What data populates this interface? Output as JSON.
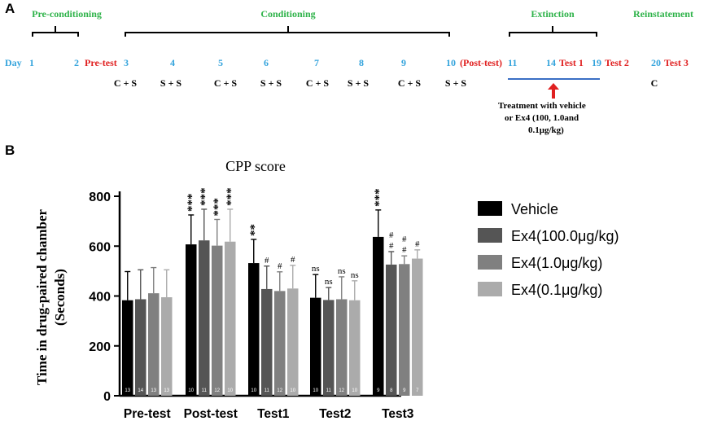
{
  "panel_a": {
    "label": "A",
    "phases": [
      {
        "name": "Pre-conditioning",
        "color": "#2fb34a"
      },
      {
        "name": "Conditioning",
        "color": "#2fb34a"
      },
      {
        "name": "Extinction",
        "color": "#2fb34a"
      },
      {
        "name": "Reinstatement",
        "color": "#2fb34a"
      }
    ],
    "timeline": {
      "day_label": "Day",
      "days": [
        {
          "text": "1",
          "color": "#33a3dc"
        },
        {
          "text": "2",
          "color": "#33a3dc"
        },
        {
          "text": "Pre-test",
          "color": "#e02020"
        },
        {
          "text": "3",
          "color": "#33a3dc"
        },
        {
          "text": "4",
          "color": "#33a3dc"
        },
        {
          "text": "5",
          "color": "#33a3dc"
        },
        {
          "text": "6",
          "color": "#33a3dc"
        },
        {
          "text": "7",
          "color": "#33a3dc"
        },
        {
          "text": "8",
          "color": "#33a3dc"
        },
        {
          "text": "9",
          "color": "#33a3dc"
        },
        {
          "text": "10",
          "color": "#33a3dc"
        },
        {
          "text": "(Post-test)",
          "color": "#e02020"
        },
        {
          "text": "11",
          "color": "#33a3dc"
        },
        {
          "text": "14",
          "color": "#33a3dc"
        },
        {
          "text": "Test 1",
          "color": "#e02020"
        },
        {
          "text": "19",
          "color": "#33a3dc"
        },
        {
          "text": "Test 2",
          "color": "#e02020"
        },
        {
          "text": "20",
          "color": "#33a3dc"
        },
        {
          "text": "Test 3",
          "color": "#e02020"
        }
      ],
      "sessions": [
        "C + S",
        "S + S",
        "C + S",
        "S + S",
        "C + S",
        "S + S",
        "C + S",
        "S + S",
        "C"
      ],
      "treatment": [
        "Treatment with vehicle",
        "or Ex4    (100, 1.0and",
        "0.1μg/kg)"
      ],
      "bar_color": "#3a6fc4",
      "arrow_color": "#e02020"
    }
  },
  "panel_b_label": "B",
  "chart_data": {
    "type": "bar",
    "title": "CPP score",
    "ylabel": "Time in drug-paired chamber",
    "ylabel2": "(Seconds)",
    "xlabel": "",
    "ylim": [
      0,
      800
    ],
    "yticks": [
      0,
      200,
      400,
      600,
      800
    ],
    "categories": [
      "Pre-test",
      "Post-test",
      "Test1",
      "Test2",
      "Test3"
    ],
    "series": [
      {
        "name": "Vehicle",
        "color": "#000000",
        "values": [
          383,
          607,
          532,
          393,
          637
        ],
        "errors": [
          115,
          118,
          95,
          93,
          108
        ],
        "n": [
          "13",
          "10",
          "10",
          "10",
          "9"
        ],
        "annotations": [
          "",
          "***",
          "**",
          "ns",
          "***"
        ]
      },
      {
        "name": "Ex4(100.0μg/kg)",
        "color": "#555555",
        "values": [
          387,
          623,
          428,
          384,
          526
        ],
        "errors": [
          118,
          125,
          92,
          50,
          52
        ],
        "n": [
          "14",
          "11",
          "11",
          "11",
          "8"
        ],
        "annotations": [
          "",
          "***",
          "#",
          "ns",
          "##"
        ]
      },
      {
        "name": "Ex4(1.0μg/kg)",
        "color": "#808080",
        "values": [
          411,
          602,
          420,
          387,
          528
        ],
        "errors": [
          103,
          105,
          77,
          90,
          33
        ],
        "n": [
          "13",
          "12",
          "12",
          "12",
          "9"
        ],
        "annotations": [
          "",
          "***",
          "#",
          "ns",
          "##"
        ]
      },
      {
        "name": "Ex4(0.1μg/kg)",
        "color": "#ababab",
        "values": [
          395,
          618,
          430,
          383,
          550
        ],
        "errors": [
          110,
          130,
          93,
          78,
          35
        ],
        "n": [
          "13",
          "10",
          "10",
          "10",
          "7"
        ],
        "annotations": [
          "",
          "***",
          "#",
          "ns",
          "#"
        ]
      }
    ]
  }
}
